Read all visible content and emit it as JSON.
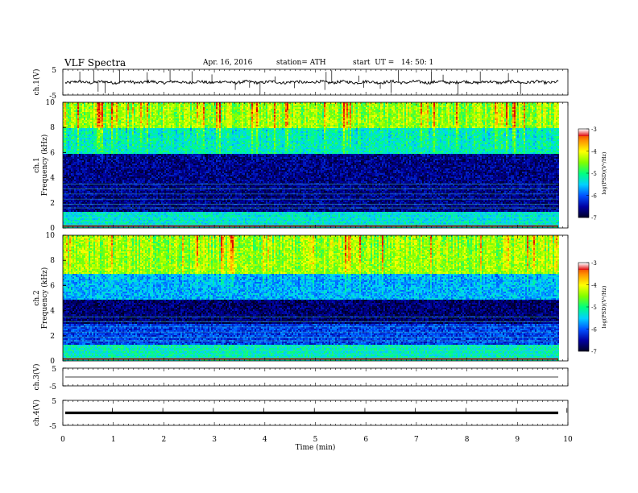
{
  "header": {
    "title": "VLF Spectra",
    "date": "Apr. 16, 2016",
    "station": "station= ATH",
    "start": "start  UT =   14: 50: 1"
  },
  "colors": {
    "axes": "#000000",
    "colormap": [
      "#000022",
      "#0000a0",
      "#0050ff",
      "#00d0ff",
      "#00ff80",
      "#80ff00",
      "#ffff00",
      "#ff9000",
      "#e00000",
      "#ffffff"
    ]
  },
  "chart_data": [
    {
      "panel": "ch1-waveform",
      "type": "line",
      "ylabel": "ch.1(V)",
      "ylim": [
        -5,
        5
      ],
      "yticklabels": [
        "5",
        "-5"
      ],
      "xlim": [
        0,
        10
      ],
      "series": [
        {
          "values_description_baseline_v": 0,
          "approx_amplitude_v": 1
        }
      ]
    },
    {
      "panel": "ch1-spectrogram",
      "type": "heatmap",
      "ylabel": "ch.1 Frequency  (kHz)",
      "ylim": [
        0,
        10
      ],
      "yticklabels": [
        "0",
        "2",
        "4",
        "6",
        "8",
        "10"
      ],
      "xlim": [
        0,
        10
      ],
      "colorbar": {
        "label": "log(PSD)(V²/Hz)",
        "range": [
          -7,
          -3
        ],
        "ticklabels": [
          "-3",
          "-4",
          "-5",
          "-6",
          "-7"
        ]
      },
      "bands": [
        {
          "f_from": 0,
          "f_to": 1.4,
          "level": -5.3
        },
        {
          "f_from": 1.4,
          "f_to": 6,
          "level": -6.6
        },
        {
          "f_from": 6,
          "f_to": 8,
          "level": -5.2
        },
        {
          "f_from": 8,
          "f_to": 10,
          "level": -4.4
        }
      ]
    },
    {
      "panel": "ch2-spectrogram",
      "type": "heatmap",
      "ylabel": "ch.2 Frequency  (kHz)",
      "ylim": [
        0,
        10
      ],
      "yticklabels": [
        "0",
        "2",
        "4",
        "6",
        "8",
        "10"
      ],
      "xlim": [
        0,
        10
      ],
      "colorbar": {
        "label": "log(PSD)(V²/Hz)",
        "range": [
          -7,
          -3
        ],
        "ticklabels": [
          "-3",
          "-4",
          "-5",
          "-6",
          "-7"
        ]
      },
      "bands": [
        {
          "f_from": 0,
          "f_to": 1.4,
          "level": -5.2
        },
        {
          "f_from": 1.4,
          "f_to": 3,
          "level": -6.1
        },
        {
          "f_from": 3,
          "f_to": 5,
          "level": -6.7
        },
        {
          "f_from": 5,
          "f_to": 7,
          "level": -5.6
        },
        {
          "f_from": 7,
          "f_to": 10,
          "level": -4.4
        }
      ]
    },
    {
      "panel": "ch3-waveform",
      "type": "line",
      "ylabel": "ch.3(V)",
      "ylim": [
        -5,
        5
      ],
      "yticklabels": [
        "5",
        "-5"
      ],
      "xlim": [
        0,
        10
      ],
      "series": [
        {
          "approx_value_v": 0
        }
      ]
    },
    {
      "panel": "ch4-waveform",
      "type": "line",
      "ylabel": "ch.4(V)",
      "ylim": [
        -5,
        5
      ],
      "yticklabels": [
        "5",
        "-5"
      ],
      "xlim": [
        0,
        10
      ],
      "xlabel": "Time  (min)",
      "xticklabels": [
        "0",
        "1",
        "2",
        "3",
        "4",
        "5",
        "6",
        "7",
        "8",
        "9",
        "10"
      ],
      "series": [
        {
          "approx_value_v": 0
        }
      ]
    }
  ]
}
